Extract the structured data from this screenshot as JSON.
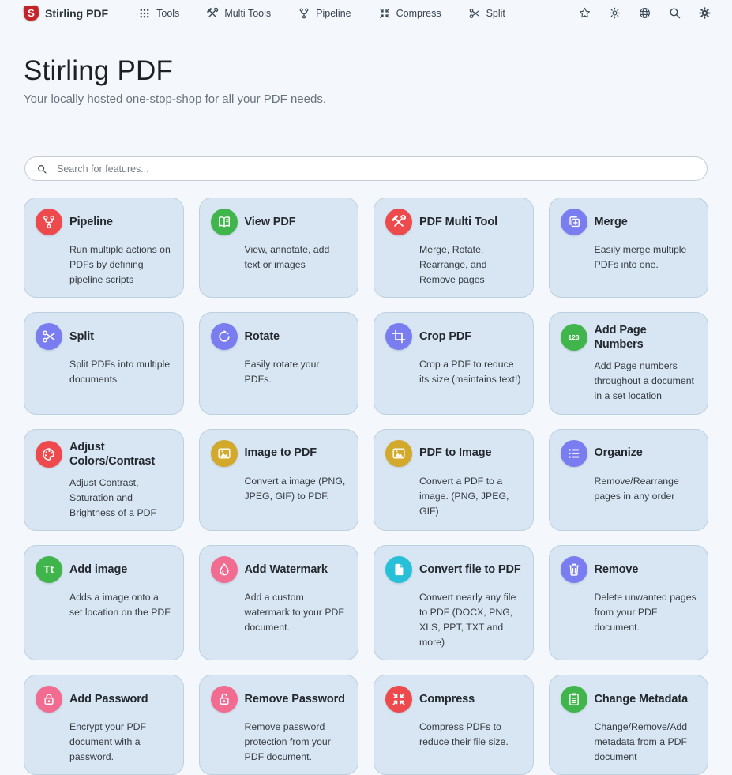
{
  "nav": {
    "brand": {
      "label": "Stirling PDF",
      "logo_letter": "S",
      "logo_color": "#c5232a"
    },
    "items": [
      {
        "label": "Tools",
        "icon": "apps-grid-icon"
      },
      {
        "label": "Multi Tools",
        "icon": "multi-tools-icon"
      },
      {
        "label": "Pipeline",
        "icon": "pipeline-icon"
      },
      {
        "label": "Compress",
        "icon": "compress-icon"
      },
      {
        "label": "Split",
        "icon": "scissors-icon"
      }
    ],
    "action_icons": [
      "star-icon",
      "brightness-icon",
      "globe-icon",
      "search-icon",
      "gear-icon"
    ]
  },
  "hero": {
    "title": "Stirling PDF",
    "subtitle": "Your locally hosted one-stop-shop for all your PDF needs."
  },
  "search": {
    "placeholder": "Search for features...",
    "icon": "search-icon"
  },
  "cards": [
    {
      "title": "Pipeline",
      "description": "Run multiple actions on PDFs by defining pipeline scripts",
      "icon": "pipeline-icon",
      "color": "#ee4a4e"
    },
    {
      "title": "View PDF",
      "description": "View, annotate, add text or images",
      "icon": "book-open-icon",
      "color": "#40b54b"
    },
    {
      "title": "PDF Multi Tool",
      "description": "Merge, Rotate, Rearrange, and Remove pages",
      "icon": "multi-tools-icon",
      "color": "#ee4a4e"
    },
    {
      "title": "Merge",
      "description": "Easily merge multiple PDFs into one.",
      "icon": "merge-icon",
      "color": "#7a7df0"
    },
    {
      "title": "Split",
      "description": "Split PDFs into multiple documents",
      "icon": "scissors-icon",
      "color": "#7a7df0"
    },
    {
      "title": "Rotate",
      "description": "Easily rotate your PDFs.",
      "icon": "rotate-icon",
      "color": "#7a7df0"
    },
    {
      "title": "Crop PDF",
      "description": "Crop a PDF to reduce its size (maintains text!)",
      "icon": "crop-icon",
      "color": "#7a7df0"
    },
    {
      "title": "Add Page Numbers",
      "description": "Add Page numbers throughout a document in a set location",
      "icon": "page-numbers-icon",
      "icon_text": "123",
      "color": "#40b54b"
    },
    {
      "title": "Adjust Colors/Contrast",
      "description": "Adjust Contrast, Saturation and Brightness of a PDF",
      "icon": "palette-icon",
      "color": "#ee4a4e"
    },
    {
      "title": "Image to PDF",
      "description": "Convert a image (PNG, JPEG, GIF) to PDF.",
      "icon": "image-icon",
      "color": "#d2a92b"
    },
    {
      "title": "PDF to Image",
      "description": "Convert a PDF to a image. (PNG, JPEG, GIF)",
      "icon": "image-icon",
      "color": "#d2a92b"
    },
    {
      "title": "Organize",
      "description": "Remove/Rearrange pages in any order",
      "icon": "list-icon",
      "color": "#7a7df0"
    },
    {
      "title": "Add image",
      "description": "Adds a image onto a set location on the PDF",
      "icon": "text-format-icon",
      "icon_text": "Tt",
      "color": "#40b54b"
    },
    {
      "title": "Add Watermark",
      "description": "Add a custom watermark to your PDF document.",
      "icon": "drop-icon",
      "color": "#f26b90"
    },
    {
      "title": "Convert file to PDF",
      "description": "Convert nearly any file to PDF (DOCX, PNG, XLS, PPT, TXT and more)",
      "icon": "file-icon",
      "color": "#28c0d8"
    },
    {
      "title": "Remove",
      "description": "Delete unwanted pages from your PDF document.",
      "icon": "trash-icon",
      "color": "#7a7df0"
    },
    {
      "title": "Add Password",
      "description": "Encrypt your PDF document with a password.",
      "icon": "lock-icon",
      "color": "#f26b90"
    },
    {
      "title": "Remove Password",
      "description": "Remove password protection from your PDF document.",
      "icon": "unlock-icon",
      "color": "#f26b90"
    },
    {
      "title": "Compress",
      "description": "Compress PDFs to reduce their file size.",
      "icon": "compress-icon",
      "color": "#ee4a4e"
    },
    {
      "title": "Change Metadata",
      "description": "Change/Remove/Add metadata from a PDF document",
      "icon": "clipboard-icon",
      "color": "#40b54b"
    }
  ]
}
